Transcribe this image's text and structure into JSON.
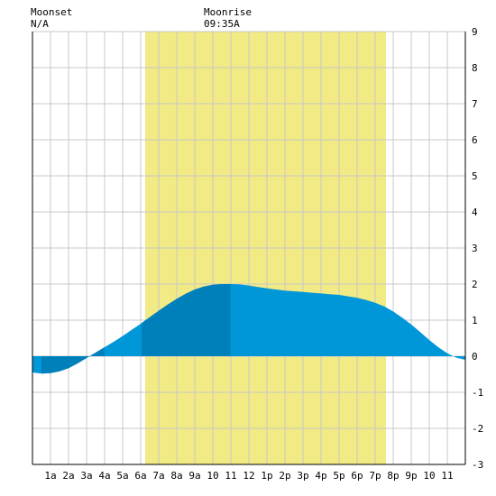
{
  "header": {
    "moonset_label": "Moonset",
    "moonset_value": "N/A",
    "moonrise_label": "Moonrise",
    "moonrise_value": "09:35A"
  },
  "chart_data": {
    "type": "area",
    "title": "",
    "xlabel": "",
    "ylabel": "",
    "x_range_hours": [
      0,
      24
    ],
    "ylim": [
      -3,
      9
    ],
    "grid": true,
    "y_ticks": [
      -3,
      -2,
      -1,
      0,
      1,
      2,
      3,
      4,
      5,
      6,
      7,
      8,
      9
    ],
    "x_ticks": [
      {
        "h": 1,
        "label": "1a"
      },
      {
        "h": 2,
        "label": "2a"
      },
      {
        "h": 3,
        "label": "3a"
      },
      {
        "h": 4,
        "label": "4a"
      },
      {
        "h": 5,
        "label": "5a"
      },
      {
        "h": 6,
        "label": "6a"
      },
      {
        "h": 7,
        "label": "7a"
      },
      {
        "h": 8,
        "label": "8a"
      },
      {
        "h": 9,
        "label": "9a"
      },
      {
        "h": 10,
        "label": "10"
      },
      {
        "h": 11,
        "label": "11"
      },
      {
        "h": 12,
        "label": "12"
      },
      {
        "h": 13,
        "label": "1p"
      },
      {
        "h": 14,
        "label": "2p"
      },
      {
        "h": 15,
        "label": "3p"
      },
      {
        "h": 16,
        "label": "4p"
      },
      {
        "h": 17,
        "label": "5p"
      },
      {
        "h": 18,
        "label": "6p"
      },
      {
        "h": 19,
        "label": "7p"
      },
      {
        "h": 20,
        "label": "8p"
      },
      {
        "h": 21,
        "label": "9p"
      },
      {
        "h": 22,
        "label": "10"
      },
      {
        "h": 23,
        "label": "11"
      }
    ],
    "daylight_hours": [
      6.25,
      19.6
    ],
    "moon_up_from_hours": 9.58,
    "tide_series": {
      "name": "",
      "points": [
        [
          0,
          -0.45
        ],
        [
          0.5,
          -0.48
        ],
        [
          1,
          -0.47
        ],
        [
          1.5,
          -0.42
        ],
        [
          2,
          -0.33
        ],
        [
          2.5,
          -0.2
        ],
        [
          3,
          -0.05
        ],
        [
          3.5,
          0.1
        ],
        [
          4,
          0.25
        ],
        [
          4.5,
          0.4
        ],
        [
          5,
          0.56
        ],
        [
          5.5,
          0.73
        ],
        [
          6,
          0.9
        ],
        [
          6.5,
          1.08
        ],
        [
          7,
          1.26
        ],
        [
          7.5,
          1.43
        ],
        [
          8,
          1.59
        ],
        [
          8.5,
          1.73
        ],
        [
          9,
          1.85
        ],
        [
          9.5,
          1.93
        ],
        [
          10,
          1.98
        ],
        [
          10.5,
          2.0
        ],
        [
          11,
          2.0
        ],
        [
          11.5,
          1.99
        ],
        [
          12,
          1.96
        ],
        [
          12.5,
          1.92
        ],
        [
          13,
          1.88
        ],
        [
          13.5,
          1.85
        ],
        [
          14,
          1.82
        ],
        [
          14.5,
          1.8
        ],
        [
          15,
          1.78
        ],
        [
          15.5,
          1.76
        ],
        [
          16,
          1.74
        ],
        [
          16.5,
          1.72
        ],
        [
          17,
          1.7
        ],
        [
          17.5,
          1.66
        ],
        [
          18,
          1.62
        ],
        [
          18.5,
          1.56
        ],
        [
          19,
          1.48
        ],
        [
          19.5,
          1.38
        ],
        [
          20,
          1.24
        ],
        [
          20.5,
          1.07
        ],
        [
          21,
          0.88
        ],
        [
          21.5,
          0.67
        ],
        [
          22,
          0.45
        ],
        [
          22.5,
          0.25
        ],
        [
          23,
          0.08
        ],
        [
          23.5,
          -0.04
        ],
        [
          24,
          -0.1
        ]
      ]
    },
    "colors": {
      "daylight": "#f2ea84",
      "tide": "#0097d9",
      "tide_moon_dark": "#0080ba",
      "tide_early_dark": "#0080ba",
      "grid": "#c8c8c8",
      "background": "#ffffff"
    }
  }
}
